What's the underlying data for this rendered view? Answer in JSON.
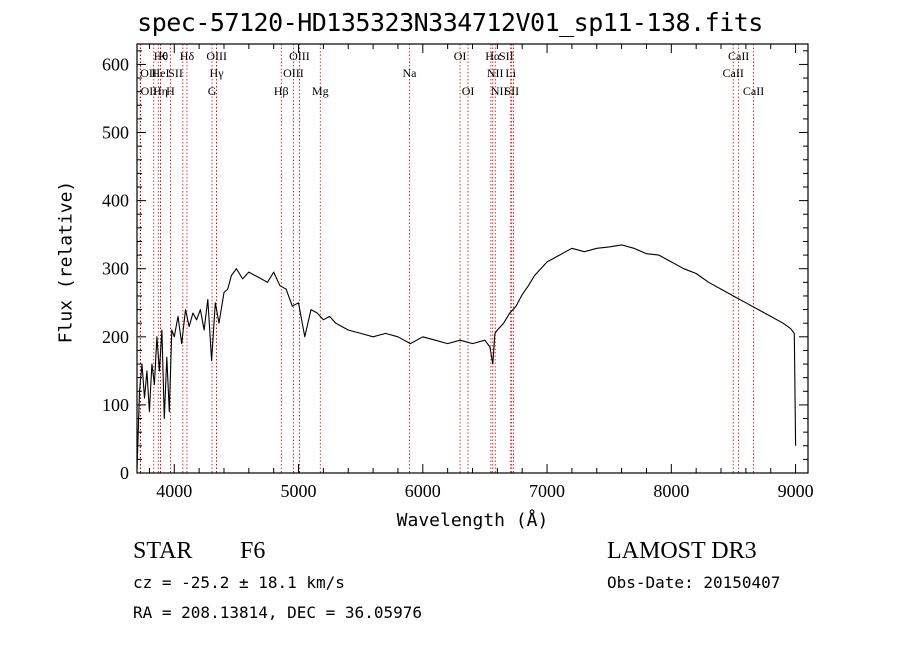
{
  "title": "spec-57120-HD135323N334712V01_sp11-138.fits",
  "info": {
    "object_class": "STAR",
    "subclass": "F6",
    "survey": "LAMOST DR3",
    "cz": "cz = -25.2 ± 18.1 km/s",
    "obs_date": "Obs-Date: 20150407",
    "coords": "RA = 208.13814, DEC =  36.05976"
  },
  "colors": {
    "axes": "#000000",
    "spectrum": "#000000",
    "line_markers": "#cc0000"
  },
  "chart_data": {
    "type": "line",
    "title": "spec-57120-HD135323N334712V01_sp11-138.fits",
    "xlabel": "Wavelength (Å)",
    "ylabel": "Flux (relative)",
    "xlim": [
      3700,
      9100
    ],
    "ylim": [
      0,
      630
    ],
    "xticks": [
      4000,
      5000,
      6000,
      7000,
      8000,
      9000
    ],
    "yticks": [
      0,
      100,
      200,
      300,
      400,
      500,
      600
    ],
    "grid": false,
    "series": [
      {
        "x": [
          3700,
          3720,
          3740,
          3760,
          3780,
          3800,
          3820,
          3840,
          3860,
          3880,
          3900,
          3920,
          3940,
          3960,
          3980,
          4000,
          4030,
          4060,
          4090,
          4120,
          4150,
          4180,
          4210,
          4240,
          4270,
          4300,
          4330,
          4360,
          4400,
          4430,
          4460,
          4500,
          4550,
          4600,
          4650,
          4700,
          4750,
          4800,
          4850,
          4900,
          4950,
          5000,
          5050,
          5100,
          5150,
          5200,
          5250,
          5300,
          5350,
          5400,
          5500,
          5600,
          5700,
          5800,
          5900,
          6000,
          6100,
          6200,
          6300,
          6400,
          6500,
          6540,
          6563,
          6580,
          6600,
          6650,
          6700,
          6750,
          6800,
          6850,
          6900,
          6950,
          7000,
          7100,
          7200,
          7300,
          7400,
          7500,
          7600,
          7700,
          7800,
          7900,
          8000,
          8100,
          8200,
          8300,
          8400,
          8500,
          8600,
          8700,
          8800,
          8900,
          8960,
          8990,
          9000
        ],
        "y": [
          5,
          120,
          160,
          110,
          150,
          90,
          160,
          130,
          200,
          150,
          210,
          80,
          170,
          90,
          210,
          200,
          230,
          190,
          240,
          215,
          235,
          225,
          240,
          210,
          255,
          165,
          250,
          220,
          265,
          270,
          290,
          300,
          285,
          295,
          290,
          285,
          280,
          295,
          275,
          270,
          245,
          250,
          200,
          240,
          235,
          225,
          230,
          220,
          215,
          210,
          205,
          200,
          205,
          200,
          190,
          200,
          195,
          190,
          195,
          190,
          195,
          185,
          160,
          205,
          210,
          220,
          235,
          245,
          262,
          275,
          290,
          300,
          310,
          320,
          330,
          325,
          330,
          332,
          335,
          330,
          322,
          320,
          310,
          300,
          293,
          280,
          270,
          260,
          250,
          240,
          230,
          220,
          212,
          205,
          40
        ]
      }
    ],
    "lines": [
      {
        "wl": 3835,
        "label": "Hθ",
        "row": 0,
        "anchor": "start"
      },
      {
        "wl": 3871,
        "label": "K",
        "row": 0,
        "anchor": "start"
      },
      {
        "wl": 4102,
        "label": "Hδ",
        "row": 0,
        "anchor": "middle"
      },
      {
        "wl": 4341,
        "label": "OIII",
        "row": 0,
        "anchor": "middle"
      },
      {
        "wl": 5007,
        "label": "OIII",
        "row": 0,
        "anchor": "middle"
      },
      {
        "wl": 6300,
        "label": "OI",
        "row": 0,
        "anchor": "middle"
      },
      {
        "wl": 6563,
        "label": "Hα",
        "row": 0,
        "anchor": "middle"
      },
      {
        "wl": 6731,
        "label": "SII",
        "row": 0,
        "anchor": "end"
      },
      {
        "wl": 8542,
        "label": "CaII",
        "row": 0,
        "anchor": "middle"
      },
      {
        "wl": 3726,
        "label": "OII",
        "row": 1,
        "anchor": "start"
      },
      {
        "wl": 3889,
        "label": "HeI",
        "row": 1,
        "anchor": "middle"
      },
      {
        "wl": 4069,
        "label": "SII",
        "row": 1,
        "anchor": "end"
      },
      {
        "wl": 4340,
        "label": "Hγ",
        "row": 1,
        "anchor": "middle"
      },
      {
        "wl": 4959,
        "label": "OIII",
        "row": 1,
        "anchor": "middle"
      },
      {
        "wl": 5893,
        "label": "Na",
        "row": 1,
        "anchor": "middle"
      },
      {
        "wl": 6583,
        "label": "NII",
        "row": 1,
        "anchor": "middle"
      },
      {
        "wl": 6708,
        "label": "Li",
        "row": 1,
        "anchor": "middle"
      },
      {
        "wl": 8498,
        "label": "CaII",
        "row": 1,
        "anchor": "middle"
      },
      {
        "wl": 3729,
        "label": "OII",
        "row": 2,
        "anchor": "start"
      },
      {
        "wl": 3889,
        "label": "Hη",
        "row": 2,
        "anchor": "middle"
      },
      {
        "wl": 3969,
        "label": "H",
        "row": 2,
        "anchor": "middle"
      },
      {
        "wl": 4304,
        "label": "G",
        "row": 2,
        "anchor": "middle"
      },
      {
        "wl": 4861,
        "label": "Hβ",
        "row": 2,
        "anchor": "middle"
      },
      {
        "wl": 5175,
        "label": "Mg",
        "row": 2,
        "anchor": "middle"
      },
      {
        "wl": 6364,
        "label": "OI",
        "row": 2,
        "anchor": "middle"
      },
      {
        "wl": 6548,
        "label": "NII",
        "row": 2,
        "anchor": "start"
      },
      {
        "wl": 6716,
        "label": "SII",
        "row": 2,
        "anchor": "middle"
      },
      {
        "wl": 8662,
        "label": "CaII",
        "row": 2,
        "anchor": "middle"
      }
    ]
  }
}
